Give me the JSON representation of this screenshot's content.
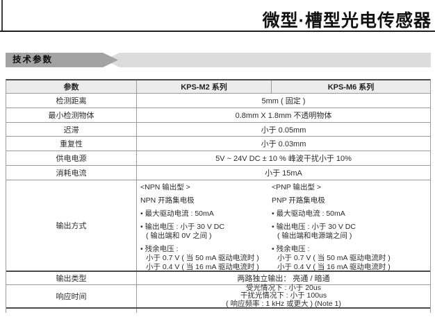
{
  "page": {
    "title": "微型·槽型光电传感器",
    "section_banner": "技术参数"
  },
  "colors": {
    "banner_dark": "#a3a3a3",
    "banner_light": "#dcdcdc",
    "header_bg": "#ececec",
    "border": "#9a9a9a",
    "border_dark": "#4a4a4a"
  },
  "table": {
    "header": {
      "param": "参数",
      "col1": "KPS-M2 系列",
      "col2": "KPS-M6 系列"
    },
    "rows": [
      {
        "label": "检测距离",
        "value": "5mm ( 固定 )"
      },
      {
        "label": "最小检测物体",
        "value": "0.8mm X 1.8mm  不透明物体"
      },
      {
        "label": "迟滞",
        "value": "小于 0.05mm"
      },
      {
        "label": "重复性",
        "value": "小于 0.03mm"
      },
      {
        "label": "供电电源",
        "value": "5V ~ 24V DC ± 10 % 峰波干扰小于 10%"
      },
      {
        "label": "消耗电流",
        "value": "小于 15mA"
      }
    ],
    "output_row": {
      "label": "输出方式",
      "npn": {
        "heading": "<NPN 输出型 >",
        "collector": "NPN 开路集电极",
        "line1": "• 最大驱动电流 : 50mA",
        "line2": "• 输出电压 : 小于 30 V DC",
        "line2b": "( 输出端和 0V 之间 )",
        "line3": "• 残余电压 :",
        "line3b": "小于 0.7 V ( 当 50 mA 驱动电流时 )",
        "line3c": "小于 0.4 V ( 当 16 mA 驱动电流时 )"
      },
      "pnp": {
        "heading": "<PNP 输出型 >",
        "collector": "PNP 开路集电极",
        "line1": "• 最大驱动电流 : 50mA",
        "line2": "• 输出电压 : 小于 30 V DC",
        "line2b": "( 输出端和电源端之间 )",
        "line3": "• 残余电压 :",
        "line3b": "小于 0.7 V ( 当 50 mA 驱动电流时 )",
        "line3c": "小于 0.4 V ( 当 16 mA 驱动电流时 )"
      }
    },
    "output_type_row": {
      "label": "输出类型",
      "value": "两路独立输出： 亮通 / 暗通"
    },
    "response_row": {
      "label": "响应时间",
      "lines": [
        "受光情况下 : 小于 20us",
        "干扰光情况下 : 小于 100us",
        "( 响应频率 : 1 kHz 或更大 ) (Note 1)"
      ]
    }
  }
}
